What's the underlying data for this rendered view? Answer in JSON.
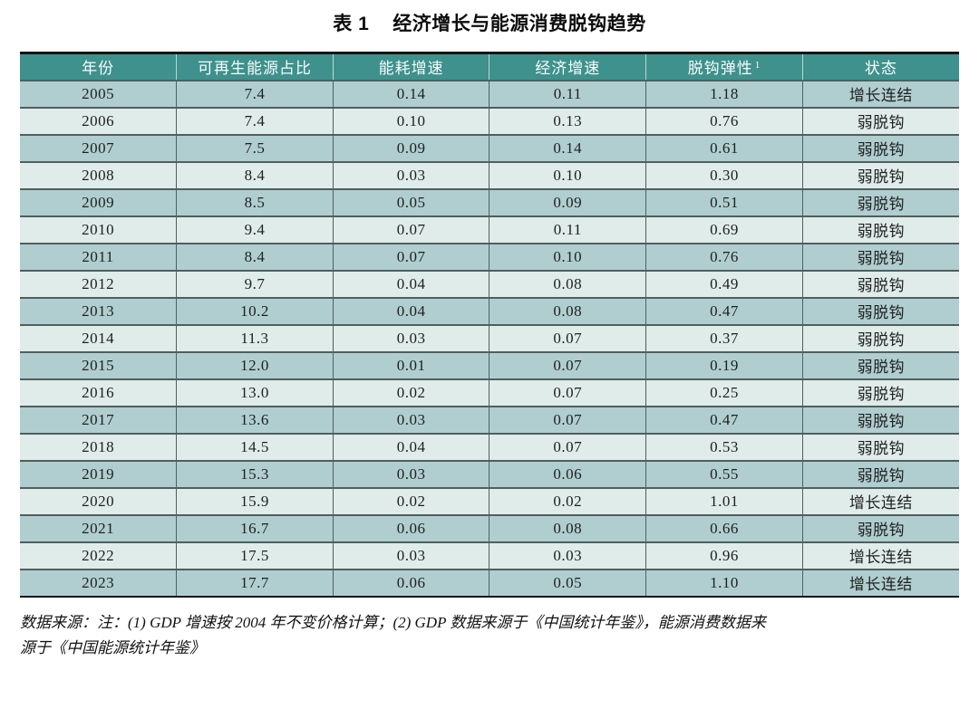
{
  "title": {
    "table_label": "表 1",
    "text": "经济增长与能源消费脱钩趋势"
  },
  "table": {
    "columns": [
      "年份",
      "可再生能源占比",
      "能耗增速",
      "经济增速",
      "脱钩弹性",
      "状态"
    ],
    "elasticity_note_marker": "1",
    "rows": [
      [
        "2005",
        "7.4",
        "0.14",
        "0.11",
        "1.18",
        "增长连结"
      ],
      [
        "2006",
        "7.4",
        "0.10",
        "0.13",
        "0.76",
        "弱脱钩"
      ],
      [
        "2007",
        "7.5",
        "0.09",
        "0.14",
        "0.61",
        "弱脱钩"
      ],
      [
        "2008",
        "8.4",
        "0.03",
        "0.10",
        "0.30",
        "弱脱钩"
      ],
      [
        "2009",
        "8.5",
        "0.05",
        "0.09",
        "0.51",
        "弱脱钩"
      ],
      [
        "2010",
        "9.4",
        "0.07",
        "0.11",
        "0.69",
        "弱脱钩"
      ],
      [
        "2011",
        "8.4",
        "0.07",
        "0.10",
        "0.76",
        "弱脱钩"
      ],
      [
        "2012",
        "9.7",
        "0.04",
        "0.08",
        "0.49",
        "弱脱钩"
      ],
      [
        "2013",
        "10.2",
        "0.04",
        "0.08",
        "0.47",
        "弱脱钩"
      ],
      [
        "2014",
        "11.3",
        "0.03",
        "0.07",
        "0.37",
        "弱脱钩"
      ],
      [
        "2015",
        "12.0",
        "0.01",
        "0.07",
        "0.19",
        "弱脱钩"
      ],
      [
        "2016",
        "13.0",
        "0.02",
        "0.07",
        "0.25",
        "弱脱钩"
      ],
      [
        "2017",
        "13.6",
        "0.03",
        "0.07",
        "0.47",
        "弱脱钩"
      ],
      [
        "2018",
        "14.5",
        "0.04",
        "0.07",
        "0.53",
        "弱脱钩"
      ],
      [
        "2019",
        "15.3",
        "0.03",
        "0.06",
        "0.55",
        "弱脱钩"
      ],
      [
        "2020",
        "15.9",
        "0.02",
        "0.02",
        "1.01",
        "增长连结"
      ],
      [
        "2021",
        "16.7",
        "0.06",
        "0.08",
        "0.66",
        "弱脱钩"
      ],
      [
        "2022",
        "17.5",
        "0.03",
        "0.03",
        "0.96",
        "增长连结"
      ],
      [
        "2023",
        "17.7",
        "0.06",
        "0.05",
        "1.10",
        "增长连结"
      ]
    ]
  },
  "footnote": {
    "line1": "数据来源：注：(1) GDP 增速按 2004 年不变价格计算；(2) GDP 数据来源于《中国统计年鉴》，能源消费数据来",
    "line2": "源于《中国能源统计年鉴》"
  },
  "colors": {
    "header_bg": "#3e918c",
    "row_dark": "#b0ced0",
    "row_light": "#dfecea",
    "grid_line": "#4f5f5e",
    "outer_border": "#161616",
    "header_text": "#f7fcfb"
  }
}
